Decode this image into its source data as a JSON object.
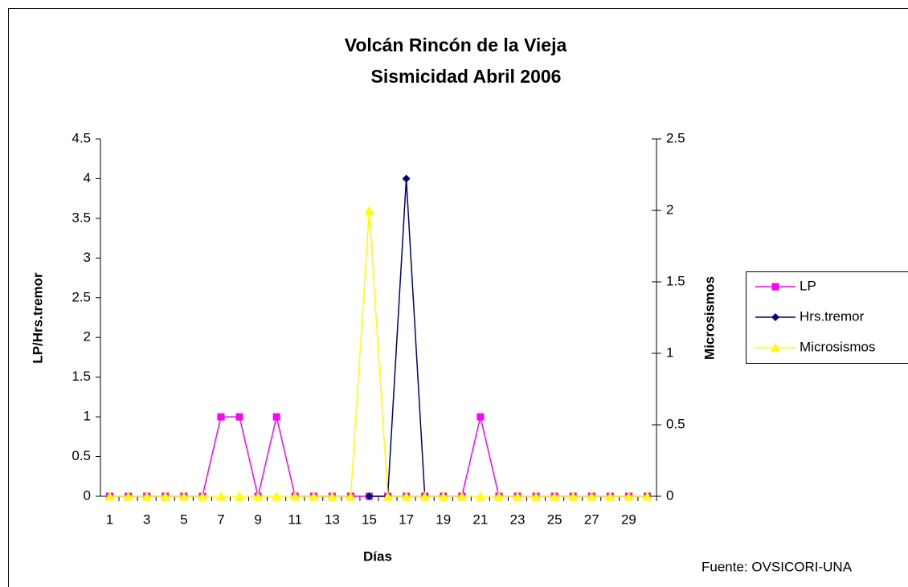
{
  "chart_data": {
    "type": "line",
    "title": "Volcán Rincón de la Vieja",
    "subtitle": "Sismicidad Abril 2006",
    "x_label": "Días",
    "y_label": "LP/Hrs.tremor",
    "y2_label": "Microsismos",
    "annotation": "Fuente: OVSICORI-UNA",
    "categories": [
      1,
      null,
      3,
      null,
      5,
      null,
      7,
      null,
      9,
      null,
      11,
      null,
      13,
      null,
      15,
      null,
      17,
      null,
      19,
      null,
      21,
      null,
      23,
      null,
      25,
      null,
      27,
      null,
      29,
      null
    ],
    "series": [
      {
        "name": "LP",
        "color": "#ff00ff",
        "marker": "square",
        "values": [
          0,
          0,
          0,
          0,
          0,
          0,
          1,
          1,
          0,
          1,
          0,
          0,
          0,
          0,
          0,
          0,
          0,
          0,
          0,
          0,
          1,
          0,
          0,
          0,
          0,
          0,
          0,
          0,
          0,
          0
        ]
      },
      {
        "name": "Hrs.tremor",
        "color": "#000080",
        "marker": "diamond",
        "values": [
          null,
          null,
          null,
          null,
          null,
          null,
          null,
          null,
          null,
          null,
          null,
          null,
          null,
          null,
          0,
          0,
          4,
          0,
          null,
          null,
          null,
          null,
          null,
          null,
          null,
          null,
          null,
          null,
          null,
          null
        ]
      },
      {
        "name": "Microsismos",
        "color": "#ffff00",
        "marker": "triangle",
        "axis": "y2",
        "values": [
          0,
          0,
          0,
          0,
          0,
          0,
          0,
          0,
          0,
          0,
          0,
          0,
          0,
          0,
          2,
          0,
          0,
          0,
          0,
          0,
          0,
          0,
          0,
          0,
          0,
          0,
          0,
          0,
          0,
          0
        ]
      }
    ],
    "ylim": [
      0,
      4.5
    ],
    "yticks": [
      0,
      0.5,
      1,
      1.5,
      2,
      2.5,
      3,
      3.5,
      4,
      4.5
    ],
    "y2lim": [
      0,
      2.5
    ],
    "y2ticks": [
      0,
      0.5,
      1,
      1.5,
      2,
      2.5
    ],
    "legend": "right"
  }
}
